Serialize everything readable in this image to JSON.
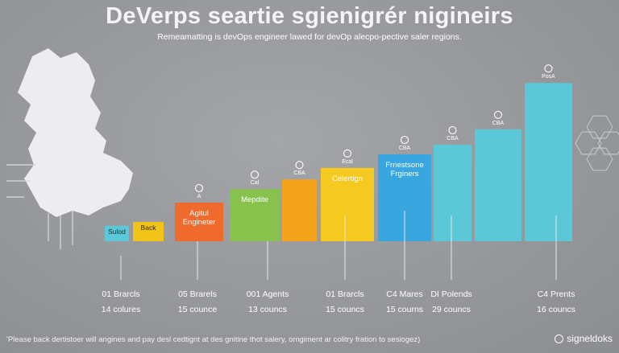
{
  "header": {
    "title": "DeVerps seartie sgienigrér nigineirs",
    "subtitle": "Remeamatting is devOps engineer lawed for devOp alecpo-pective saler regions."
  },
  "footer": {
    "note": "'Please back dertistoer will angines and pay desl cedtignt at des gnitine thot salery, omgiment ar colitry fration to sesiogez)",
    "brand": "signeldoks"
  },
  "chart_data": {
    "type": "bar",
    "bars": [
      {
        "label": "Sulod",
        "value": 8,
        "color": "#5ac8d8",
        "icon": ""
      },
      {
        "label": "Back",
        "value": 10,
        "color": "#f2c318",
        "icon": ""
      },
      {
        "label": "Agitul Engineter",
        "value": 20,
        "color": "#ee6a2d",
        "icon": "A"
      },
      {
        "label": "Mepdite",
        "value": 27,
        "color": "#86c24c",
        "icon": "Cal"
      },
      {
        "label": "",
        "value": 32,
        "color": "#f6a31c",
        "icon": "CBA"
      },
      {
        "label": "Celertign",
        "value": 38,
        "color": "#f5c91f",
        "icon": "Ecal"
      },
      {
        "label": "Frnestsone Frginers",
        "value": 45,
        "color": "#3aa6df",
        "icon": "CBA"
      },
      {
        "label": "",
        "value": 50,
        "color": "#5cc7d6",
        "icon": "CBA"
      },
      {
        "label": "",
        "value": 58,
        "color": "#5cc7d6",
        "icon": "CBA"
      },
      {
        "label": "",
        "value": 82,
        "color": "#5cc7d6",
        "icon": "PosA"
      }
    ],
    "groups": [
      {
        "region": "01 Brarcls",
        "count": "14 colures"
      },
      {
        "region": "05 Brarels",
        "count": "15 counce"
      },
      {
        "region": "001 Agents",
        "count": "13 councs"
      },
      {
        "region": "01 Brarcls",
        "count": "15 councs"
      },
      {
        "region": "C4 Mares",
        "count": "15 courns"
      },
      {
        "region": "DI Polends",
        "count": "29 councs"
      },
      {
        "region": "C4 Prents",
        "count": "16 councs"
      }
    ],
    "ylim": [
      0,
      100
    ],
    "grid": false,
    "legend": "none"
  }
}
